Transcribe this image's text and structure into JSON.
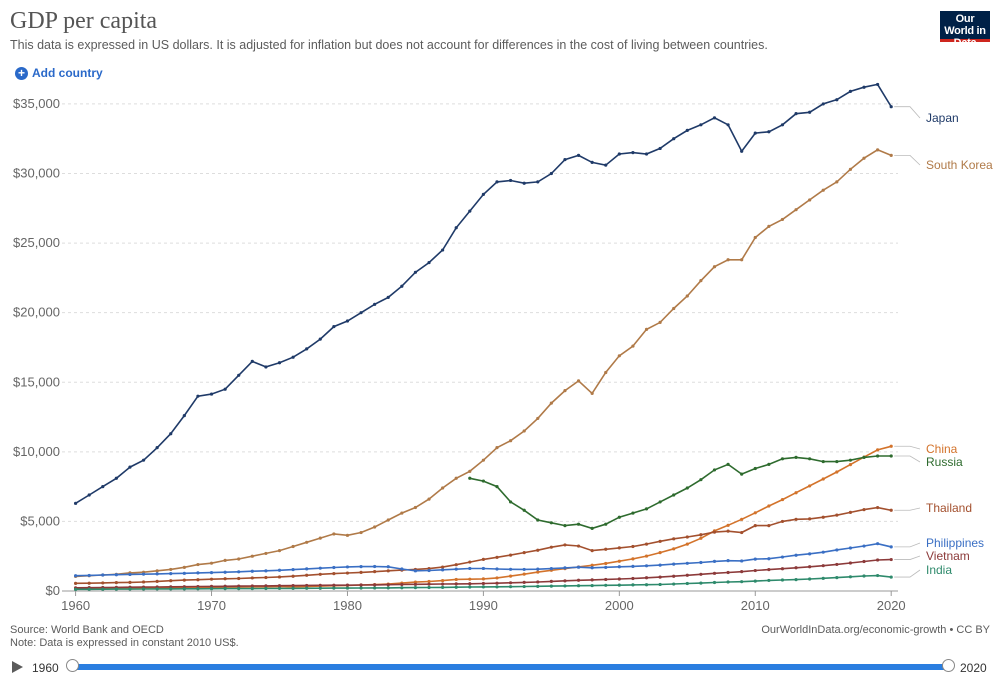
{
  "header": {
    "title": "GDP per capita",
    "subtitle": "This data is expressed in US dollars. It is adjusted for inflation but does not account for differences in the cost of living between countries.",
    "logo_text": "Our World in Data",
    "add_country_label": "Add country"
  },
  "footer": {
    "source": "Source: World Bank and OECD",
    "note": "Note: Data is expressed in constant 2010 US$.",
    "credit": "OurWorldInData.org/economic-growth • CC BY"
  },
  "timeline": {
    "start_label": "1960",
    "end_label": "2020",
    "start_year": 1960,
    "end_year": 2020
  },
  "chart_data": {
    "type": "line",
    "title": "GDP per capita",
    "xlim": [
      1959,
      2020.5
    ],
    "ylim": [
      0,
      36000
    ],
    "x_ticks": [
      1960,
      1970,
      1980,
      1990,
      2000,
      2010,
      2020
    ],
    "x_tick_labels": [
      "1960",
      "1970",
      "1980",
      "1990",
      "2000",
      "2010",
      "2020"
    ],
    "y_ticks": [
      0,
      5000,
      10000,
      15000,
      20000,
      25000,
      30000,
      35000
    ],
    "y_tick_labels": [
      "$0",
      "$5,000",
      "$10,000",
      "$15,000",
      "$20,000",
      "$25,000",
      "$30,000",
      "$35,000"
    ],
    "grid": "horizontal dashed",
    "legend": "right, labels at line ends",
    "series": [
      {
        "name": "Japan",
        "color": "#1f3a68",
        "start": 1960,
        "values": [
          6300,
          6900,
          7500,
          8100,
          8900,
          9400,
          10300,
          11300,
          12600,
          14000,
          14150,
          14500,
          15500,
          16500,
          16100,
          16400,
          16800,
          17400,
          18100,
          19000,
          19400,
          20000,
          20600,
          21100,
          21900,
          22900,
          23600,
          24500,
          26100,
          27300,
          28500,
          29400,
          29500,
          29300,
          29400,
          30000,
          31000,
          31300,
          30800,
          30600,
          31400,
          31500,
          31400,
          31800,
          32500,
          33100,
          33500,
          34000,
          33500,
          31600,
          32900,
          33000,
          33500,
          34300,
          34400,
          35000,
          35300,
          35900,
          36200,
          36400,
          34800
        ]
      },
      {
        "name": "South Korea",
        "color": "#b07a48",
        "start": 1960,
        "values": [
          1050,
          1100,
          1150,
          1200,
          1300,
          1350,
          1450,
          1550,
          1700,
          1900,
          2000,
          2200,
          2300,
          2500,
          2700,
          2900,
          3200,
          3500,
          3800,
          4100,
          4000,
          4200,
          4600,
          5100,
          5600,
          6000,
          6600,
          7400,
          8100,
          8600,
          9400,
          10300,
          10800,
          11500,
          12400,
          13500,
          14400,
          15100,
          14200,
          15700,
          16900,
          17600,
          18800,
          19300,
          20300,
          21200,
          22300,
          23300,
          23800,
          23800,
          25400,
          26200,
          26700,
          27400,
          28100,
          28800,
          29400,
          30300,
          31100,
          31700,
          31300
        ]
      },
      {
        "name": "China",
        "color": "#d3732b",
        "start": 1960,
        "values": [
          190,
          160,
          160,
          170,
          190,
          210,
          230,
          220,
          210,
          230,
          260,
          280,
          280,
          300,
          300,
          320,
          300,
          320,
          350,
          380,
          400,
          430,
          460,
          500,
          570,
          640,
          680,
          750,
          830,
          850,
          870,
          940,
          1070,
          1210,
          1360,
          1490,
          1610,
          1730,
          1850,
          1980,
          2140,
          2310,
          2510,
          2760,
          3030,
          3370,
          3790,
          4320,
          4720,
          5150,
          5620,
          6110,
          6570,
          7060,
          7550,
          8050,
          8550,
          9080,
          9620,
          10140,
          10400
        ]
      },
      {
        "name": "Russia",
        "color": "#2e6b2e",
        "start": 1989,
        "values": [
          8100,
          7900,
          7500,
          6400,
          5800,
          5100,
          4900,
          4700,
          4800,
          4500,
          4800,
          5300,
          5600,
          5900,
          6400,
          6900,
          7400,
          8000,
          8700,
          9100,
          8400,
          8800,
          9100,
          9500,
          9600,
          9500,
          9300,
          9300,
          9400,
          9600,
          9700,
          9700
        ]
      },
      {
        "name": "Thailand",
        "color": "#a3502e",
        "start": 1960,
        "values": [
          550,
          560,
          580,
          600,
          620,
          650,
          690,
          740,
          780,
          810,
          850,
          880,
          900,
          940,
          970,
          1010,
          1060,
          1130,
          1200,
          1250,
          1290,
          1340,
          1390,
          1450,
          1500,
          1550,
          1610,
          1720,
          1890,
          2080,
          2270,
          2420,
          2580,
          2760,
          2930,
          3150,
          3310,
          3230,
          2900,
          3000,
          3100,
          3200,
          3370,
          3570,
          3750,
          3880,
          4040,
          4230,
          4300,
          4200,
          4700,
          4700,
          5000,
          5150,
          5180,
          5300,
          5450,
          5650,
          5850,
          5990,
          5800
        ]
      },
      {
        "name": "Philippines",
        "color": "#3a6fc4",
        "start": 1960,
        "values": [
          1100,
          1120,
          1150,
          1170,
          1190,
          1210,
          1230,
          1250,
          1270,
          1300,
          1320,
          1350,
          1380,
          1420,
          1450,
          1490,
          1540,
          1590,
          1640,
          1690,
          1730,
          1750,
          1760,
          1740,
          1580,
          1450,
          1470,
          1520,
          1570,
          1620,
          1620,
          1580,
          1560,
          1550,
          1570,
          1610,
          1660,
          1710,
          1670,
          1700,
          1740,
          1770,
          1810,
          1860,
          1930,
          1990,
          2050,
          2130,
          2180,
          2160,
          2290,
          2320,
          2440,
          2570,
          2670,
          2790,
          2950,
          3090,
          3230,
          3400,
          3170
        ]
      },
      {
        "name": "Vietnam",
        "color": "#8c3a3a",
        "start": 1960,
        "values": [
          230,
          240,
          250,
          260,
          270,
          280,
          290,
          300,
          310,
          320,
          330,
          340,
          350,
          360,
          370,
          380,
          390,
          400,
          410,
          415,
          420,
          430,
          440,
          450,
          470,
          480,
          490,
          500,
          510,
          520,
          540,
          560,
          590,
          620,
          650,
          690,
          730,
          770,
          800,
          830,
          860,
          900,
          950,
          1000,
          1060,
          1130,
          1200,
          1270,
          1330,
          1390,
          1470,
          1540,
          1600,
          1670,
          1740,
          1820,
          1910,
          2010,
          2120,
          2230,
          2260
        ]
      },
      {
        "name": "India",
        "color": "#2e8a6c",
        "start": 1960,
        "values": [
          120,
          125,
          130,
          135,
          140,
          145,
          150,
          150,
          155,
          160,
          165,
          170,
          170,
          175,
          180,
          185,
          190,
          195,
          200,
          205,
          210,
          215,
          220,
          225,
          235,
          245,
          250,
          260,
          270,
          285,
          295,
          300,
          310,
          320,
          335,
          350,
          365,
          380,
          390,
          410,
          420,
          440,
          450,
          470,
          500,
          540,
          570,
          610,
          650,
          670,
          710,
          760,
          790,
          820,
          860,
          910,
          960,
          1020,
          1080,
          1110,
          1000
        ]
      }
    ]
  }
}
